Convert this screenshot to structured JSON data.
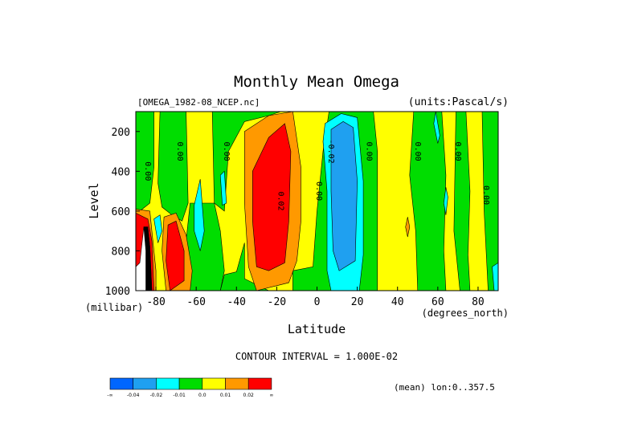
{
  "chart_data": {
    "type": "heatmap",
    "title": "Monthly Mean Omega",
    "subtitle_left": "[OMEGA_1982-08_NCEP.nc]",
    "subtitle_right": "(units:Pascal/s)",
    "xlabel": "Latitude",
    "x_units": "(degrees_north)",
    "ylabel": "Level",
    "y_units": "(millibar)",
    "xlim": [
      -90,
      90
    ],
    "ylim": [
      1000,
      100
    ],
    "x_ticks": [
      {
        "value": -80,
        "label": "-80"
      },
      {
        "value": -60,
        "label": "-60"
      },
      {
        "value": -40,
        "label": "-40"
      },
      {
        "value": -20,
        "label": "-20"
      },
      {
        "value": 0,
        "label": "0"
      },
      {
        "value": 20,
        "label": "20"
      },
      {
        "value": 40,
        "label": "40"
      },
      {
        "value": 60,
        "label": "60"
      },
      {
        "value": 80,
        "label": "80"
      }
    ],
    "y_ticks": [
      {
        "value": 200,
        "label": "200"
      },
      {
        "value": 400,
        "label": "400"
      },
      {
        "value": 600,
        "label": "600"
      },
      {
        "value": 800,
        "label": "800"
      },
      {
        "value": 1000,
        "label": "1000"
      }
    ],
    "contour_interval_text": "CONTOUR INTERVAL = 1.000E-02",
    "mean_text": "(mean) lon:0..357.5",
    "levels": [
      {
        "label": "-∞",
        "color": "#0066ff"
      },
      {
        "label": "-0.04",
        "color": "#1fa0f0"
      },
      {
        "label": "-0.02",
        "color": "#00ffff"
      },
      {
        "label": "-0.01",
        "color": "#00dd00"
      },
      {
        "label": "0.0",
        "color": "#ffff00"
      },
      {
        "label": "0.01",
        "color": "#ff9900"
      },
      {
        "label": "0.02",
        "color": "#ff0000"
      },
      {
        "label": "∞",
        "color": ""
      }
    ],
    "background_color": "#ffff00",
    "regions": [
      {
        "color": "#00dd00",
        "pts": [
          [
            -90,
            100
          ],
          [
            -81,
            100
          ],
          [
            -81,
            380
          ],
          [
            -83,
            560
          ],
          [
            -88,
            600
          ],
          [
            -90,
            590
          ]
        ]
      },
      {
        "color": "#00dd00",
        "pts": [
          [
            -78,
            100
          ],
          [
            -65,
            100
          ],
          [
            -64,
            560
          ],
          [
            -67,
            650
          ],
          [
            -72,
            620
          ],
          [
            -77,
            580
          ],
          [
            -79,
            460
          ]
        ]
      },
      {
        "color": "#00dd00",
        "pts": [
          [
            -63,
            560
          ],
          [
            -51,
            560
          ],
          [
            -48,
            700
          ],
          [
            -46,
            900
          ],
          [
            -48,
            1000
          ],
          [
            -66,
            1000
          ],
          [
            -65,
            750
          ]
        ]
      },
      {
        "color": "#00dd00",
        "pts": [
          [
            -52,
            100
          ],
          [
            -18,
            100
          ],
          [
            -24,
            120
          ],
          [
            -36,
            150
          ],
          [
            -44,
            300
          ],
          [
            -46,
            600
          ],
          [
            -51,
            560
          ]
        ]
      },
      {
        "color": "#00dd00",
        "pts": [
          [
            -46,
            920
          ],
          [
            -40,
            905
          ],
          [
            -36,
            760
          ],
          [
            -36,
            940
          ],
          [
            -24,
            1000
          ],
          [
            -48,
            1000
          ]
        ]
      },
      {
        "color": "#00dd00",
        "pts": [
          [
            -12,
            900
          ],
          [
            -2,
            880
          ],
          [
            0,
            600
          ],
          [
            3,
            300
          ],
          [
            6,
            100
          ],
          [
            28,
            100
          ],
          [
            30,
            300
          ],
          [
            30,
            700
          ],
          [
            30,
            1000
          ],
          [
            -12,
            1000
          ]
        ]
      },
      {
        "color": "#00dd00",
        "pts": [
          [
            48,
            100
          ],
          [
            62,
            100
          ],
          [
            64,
            420
          ],
          [
            63,
            800
          ],
          [
            64,
            1000
          ],
          [
            50,
            1000
          ],
          [
            49,
            700
          ],
          [
            46,
            420
          ]
        ]
      },
      {
        "color": "#00dd00",
        "pts": [
          [
            69,
            100
          ],
          [
            74,
            100
          ],
          [
            76,
            500
          ],
          [
            75,
            820
          ],
          [
            76,
            1000
          ],
          [
            71,
            1000
          ],
          [
            68,
            700
          ]
        ]
      },
      {
        "color": "#00dd00",
        "pts": [
          [
            82,
            100
          ],
          [
            90,
            100
          ],
          [
            90,
            1000
          ],
          [
            85,
            1000
          ],
          [
            83,
            600
          ]
        ]
      },
      {
        "color": "#00ffff",
        "pts": [
          [
            4,
            160
          ],
          [
            12,
            110
          ],
          [
            20,
            130
          ],
          [
            23,
            450
          ],
          [
            23,
            820
          ],
          [
            21,
            1000
          ],
          [
            7,
            1000
          ],
          [
            5,
            900
          ],
          [
            5,
            500
          ],
          [
            3,
            250
          ]
        ]
      },
      {
        "color": "#1fa0f0",
        "pts": [
          [
            7,
            190
          ],
          [
            13,
            150
          ],
          [
            18,
            180
          ],
          [
            20,
            450
          ],
          [
            19,
            850
          ],
          [
            11,
            900
          ],
          [
            8,
            800
          ],
          [
            7,
            500
          ]
        ]
      },
      {
        "color": "#00ffff",
        "pts": [
          [
            -61,
            570
          ],
          [
            -58,
            440
          ],
          [
            -56,
            700
          ],
          [
            -58,
            800
          ],
          [
            -61,
            700
          ]
        ]
      },
      {
        "color": "#00ffff",
        "pts": [
          [
            -48,
            420
          ],
          [
            -46,
            400
          ],
          [
            -45,
            560
          ],
          [
            -47,
            570
          ]
        ]
      },
      {
        "color": "#00ffff",
        "pts": [
          [
            59,
            100
          ],
          [
            61,
            220
          ],
          [
            60,
            260
          ],
          [
            58,
            160
          ]
        ]
      },
      {
        "color": "#00ffff",
        "pts": [
          [
            64,
            480
          ],
          [
            65,
            530
          ],
          [
            64,
            620
          ],
          [
            63,
            560
          ]
        ]
      },
      {
        "color": "#00ffff",
        "pts": [
          [
            87,
            880
          ],
          [
            90,
            860
          ],
          [
            90,
            1000
          ],
          [
            88,
            1000
          ]
        ]
      },
      {
        "color": "#ff9900",
        "pts": [
          [
            -36,
            200
          ],
          [
            -24,
            120
          ],
          [
            -12,
            100
          ],
          [
            -8,
            380
          ],
          [
            -8,
            650
          ],
          [
            -10,
            850
          ],
          [
            -14,
            960
          ],
          [
            -30,
            1000
          ],
          [
            -34,
            880
          ],
          [
            -36,
            560
          ]
        ]
      },
      {
        "color": "#ff0000",
        "pts": [
          [
            -32,
            400
          ],
          [
            -24,
            230
          ],
          [
            -16,
            160
          ],
          [
            -13,
            300
          ],
          [
            -14,
            650
          ],
          [
            -16,
            860
          ],
          [
            -24,
            900
          ],
          [
            -30,
            880
          ],
          [
            -32,
            650
          ]
        ]
      },
      {
        "color": "#ff9900",
        "pts": [
          [
            45,
            630
          ],
          [
            46,
            680
          ],
          [
            45,
            730
          ],
          [
            44,
            680
          ]
        ]
      },
      {
        "color": "#ff9900",
        "pts": [
          [
            -90,
            590
          ],
          [
            -83,
            600
          ],
          [
            -82,
            700
          ],
          [
            -80,
            900
          ],
          [
            -80,
            1000
          ],
          [
            -90,
            1000
          ]
        ]
      },
      {
        "color": "#ff0000",
        "pts": [
          [
            -90,
            610
          ],
          [
            -84,
            640
          ],
          [
            -82,
            750
          ],
          [
            -81,
            1000
          ],
          [
            -90,
            1000
          ]
        ]
      },
      {
        "color": "#ff9900",
        "pts": [
          [
            -76,
            630
          ],
          [
            -70,
            610
          ],
          [
            -65,
            720
          ],
          [
            -62,
            900
          ],
          [
            -63,
            1000
          ],
          [
            -75,
            1000
          ],
          [
            -77,
            800
          ]
        ]
      },
      {
        "color": "#ff0000",
        "pts": [
          [
            -74,
            670
          ],
          [
            -70,
            650
          ],
          [
            -66,
            800
          ],
          [
            -66,
            950
          ],
          [
            -73,
            1000
          ],
          [
            -75,
            850
          ]
        ]
      },
      {
        "color": "#00ffff",
        "pts": [
          [
            -81,
            640
          ],
          [
            -78,
            620
          ],
          [
            -77,
            700
          ],
          [
            -79,
            760
          ]
        ]
      },
      {
        "color": "#ffffff",
        "pts": [
          [
            -90,
            880
          ],
          [
            -88,
            860
          ],
          [
            -86,
            680
          ],
          [
            -84,
            680
          ],
          [
            -83,
            780
          ],
          [
            -82,
            1000
          ],
          [
            -90,
            1000
          ]
        ]
      },
      {
        "color": "#000000",
        "pts": [
          [
            -86,
            680
          ],
          [
            -84,
            680
          ],
          [
            -83,
            780
          ],
          [
            -82,
            1000
          ],
          [
            -85,
            1000
          ],
          [
            -85,
            800
          ]
        ]
      }
    ],
    "contour_labels": [
      {
        "text": "0.00",
        "x": -84,
        "y": 400
      },
      {
        "text": "0.00",
        "x": -68,
        "y": 300
      },
      {
        "text": "0.00",
        "x": -45,
        "y": 300
      },
      {
        "text": "0.02",
        "x": -18,
        "y": 550
      },
      {
        "text": "0.00",
        "x": 1,
        "y": 500
      },
      {
        "text": "-0.02",
        "x": 7,
        "y": 300
      },
      {
        "text": "0.00",
        "x": 26,
        "y": 300
      },
      {
        "text": "0.00",
        "x": 50,
        "y": 300
      },
      {
        "text": "0.00",
        "x": 70,
        "y": 300
      },
      {
        "text": "0.00",
        "x": 84,
        "y": 520
      }
    ]
  }
}
